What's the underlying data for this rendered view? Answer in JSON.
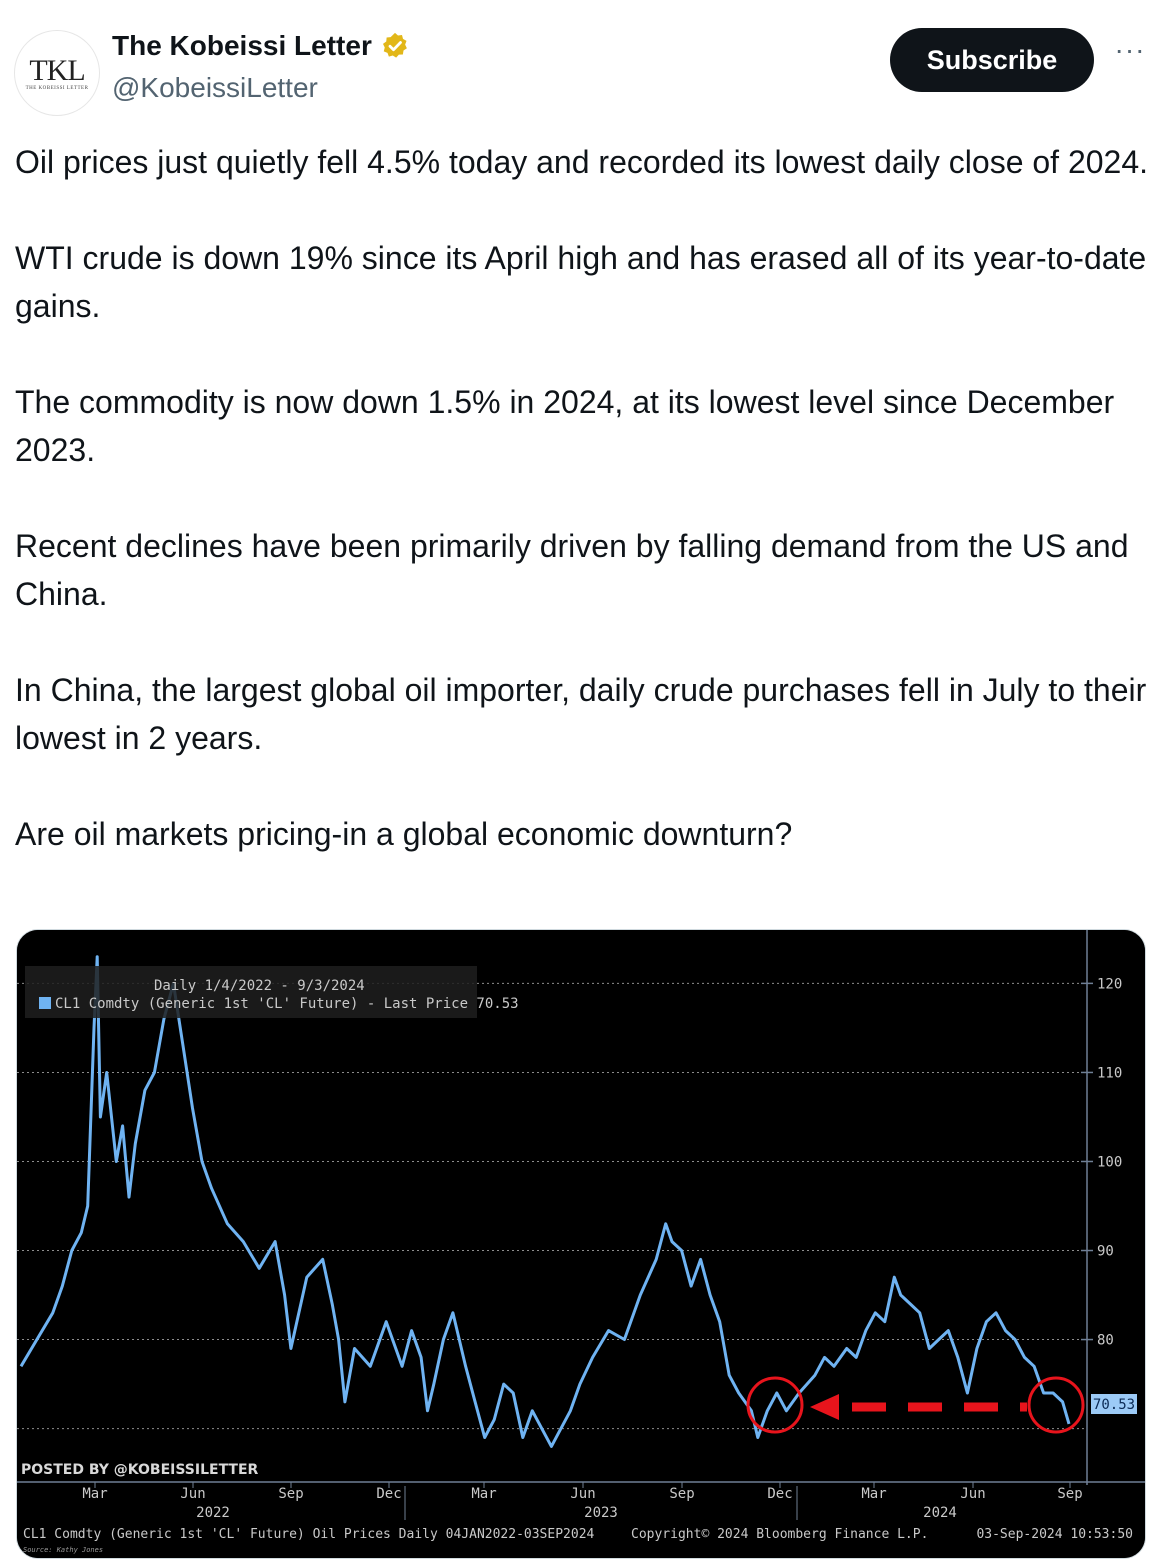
{
  "tweet": {
    "author_name": "The Kobeissi Letter",
    "author_handle": "@KobeissiLetter",
    "avatar_monogram": "TKL",
    "avatar_subtext": "THE KOBEISSI LETTER",
    "subscribe_label": "Subscribe",
    "more_label": "···",
    "paragraphs": [
      "Oil prices just quietly fell 4.5% today and recorded its lowest daily close of 2024.",
      "WTI crude is down 19% since its April high and has erased all of its year-to-date gains.",
      "The commodity is now down 1.5% in 2024, at its lowest level since December 2023.",
      "Recent declines have been primarily driven by falling demand from the US and China.",
      "In China, the largest global oil importer, daily crude purchases fell in July to their lowest in 2 years.",
      "Are oil markets pricing-in a global economic downturn?"
    ]
  },
  "colors": {
    "line": "#6fb3f2",
    "annotation": "#e8141c",
    "chart_bg": "#000000",
    "grid": "#9aa0a6",
    "subscribe_bg": "#0f1419",
    "verified": "#e2b719"
  },
  "chart_data": {
    "type": "line",
    "range_label": "Daily 1/4/2022 - 9/3/2024",
    "legend": "CL1 Comdty (Generic 1st 'CL' Future) - Last Price 70.53",
    "last_price": 70.53,
    "last_price_label": "70.53",
    "y_ticks": [
      80,
      90,
      100,
      110,
      120
    ],
    "y_tick_labels": [
      "80",
      "90",
      "100",
      "110",
      "120"
    ],
    "ylim": [
      64,
      126
    ],
    "x_month_labels": [
      "Mar",
      "Jun",
      "Sep",
      "Dec",
      "Mar",
      "Jun",
      "Sep",
      "Dec",
      "Mar",
      "Jun",
      "Sep"
    ],
    "x_year_labels": [
      "2022",
      "2023",
      "2024"
    ],
    "watermark": "POSTED BY @KOBEISSILETTER",
    "footer_left": "CL1 Comdty (Generic 1st 'CL' Future) Oil Prices  Daily 04JAN2022-03SEP2024",
    "footer_center": "Copyright© 2024 Bloomberg Finance L.P.",
    "footer_right": "03-Sep-2024 10:53:50",
    "source_note": "Source: Kathy Jones",
    "series": [
      {
        "values": [
          [
            0,
            77
          ],
          [
            0.5,
            80
          ],
          [
            1,
            83
          ],
          [
            1.3,
            86
          ],
          [
            1.6,
            90
          ],
          [
            1.9,
            92
          ],
          [
            2.1,
            95
          ],
          [
            2.3,
            115
          ],
          [
            2.4,
            123
          ],
          [
            2.5,
            105
          ],
          [
            2.7,
            110
          ],
          [
            3,
            100
          ],
          [
            3.2,
            104
          ],
          [
            3.4,
            96
          ],
          [
            3.6,
            102
          ],
          [
            3.9,
            108
          ],
          [
            4.2,
            110
          ],
          [
            4.5,
            116
          ],
          [
            4.8,
            120
          ],
          [
            5.1,
            113
          ],
          [
            5.4,
            106
          ],
          [
            5.7,
            100
          ],
          [
            6,
            97
          ],
          [
            6.5,
            93
          ],
          [
            7,
            91
          ],
          [
            7.5,
            88
          ],
          [
            8,
            91
          ],
          [
            8.3,
            85
          ],
          [
            8.5,
            79
          ],
          [
            9,
            87
          ],
          [
            9.5,
            89
          ],
          [
            9.8,
            84
          ],
          [
            10,
            80
          ],
          [
            10.2,
            73
          ],
          [
            10.5,
            79
          ],
          [
            11,
            77
          ],
          [
            11.5,
            82
          ],
          [
            12,
            77
          ],
          [
            12.3,
            81
          ],
          [
            12.6,
            78
          ],
          [
            12.8,
            72
          ],
          [
            13,
            75
          ],
          [
            13.3,
            80
          ],
          [
            13.6,
            83
          ],
          [
            14,
            77
          ],
          [
            14.3,
            73
          ],
          [
            14.6,
            69
          ],
          [
            14.9,
            71
          ],
          [
            15.2,
            75
          ],
          [
            15.5,
            74
          ],
          [
            15.8,
            69
          ],
          [
            16.1,
            72
          ],
          [
            16.4,
            70
          ],
          [
            16.7,
            68
          ],
          [
            17,
            70
          ],
          [
            17.3,
            72
          ],
          [
            17.6,
            75
          ],
          [
            18,
            78
          ],
          [
            18.5,
            81
          ],
          [
            19,
            80
          ],
          [
            19.5,
            85
          ],
          [
            20,
            89
          ],
          [
            20.3,
            93
          ],
          [
            20.5,
            91
          ],
          [
            20.8,
            90
          ],
          [
            21.1,
            86
          ],
          [
            21.4,
            89
          ],
          [
            21.7,
            85
          ],
          [
            22,
            82
          ],
          [
            22.3,
            76
          ],
          [
            22.6,
            74
          ],
          [
            23,
            72
          ],
          [
            23.2,
            69
          ],
          [
            23.5,
            72
          ],
          [
            23.8,
            74
          ],
          [
            24.1,
            72
          ],
          [
            24.5,
            74
          ],
          [
            25,
            76
          ],
          [
            25.3,
            78
          ],
          [
            25.6,
            77
          ],
          [
            26,
            79
          ],
          [
            26.3,
            78
          ],
          [
            26.6,
            81
          ],
          [
            26.9,
            83
          ],
          [
            27.2,
            82
          ],
          [
            27.5,
            87
          ],
          [
            27.7,
            85
          ],
          [
            28,
            84
          ],
          [
            28.3,
            83
          ],
          [
            28.6,
            79
          ],
          [
            28.9,
            80
          ],
          [
            29.2,
            81
          ],
          [
            29.5,
            78
          ],
          [
            29.8,
            74
          ],
          [
            30.1,
            79
          ],
          [
            30.4,
            82
          ],
          [
            30.7,
            83
          ],
          [
            31,
            81
          ],
          [
            31.3,
            80
          ],
          [
            31.6,
            78
          ],
          [
            31.9,
            77
          ],
          [
            32.2,
            74
          ],
          [
            32.5,
            74
          ],
          [
            32.8,
            73
          ],
          [
            33,
            70.53
          ]
        ]
      }
    ]
  }
}
